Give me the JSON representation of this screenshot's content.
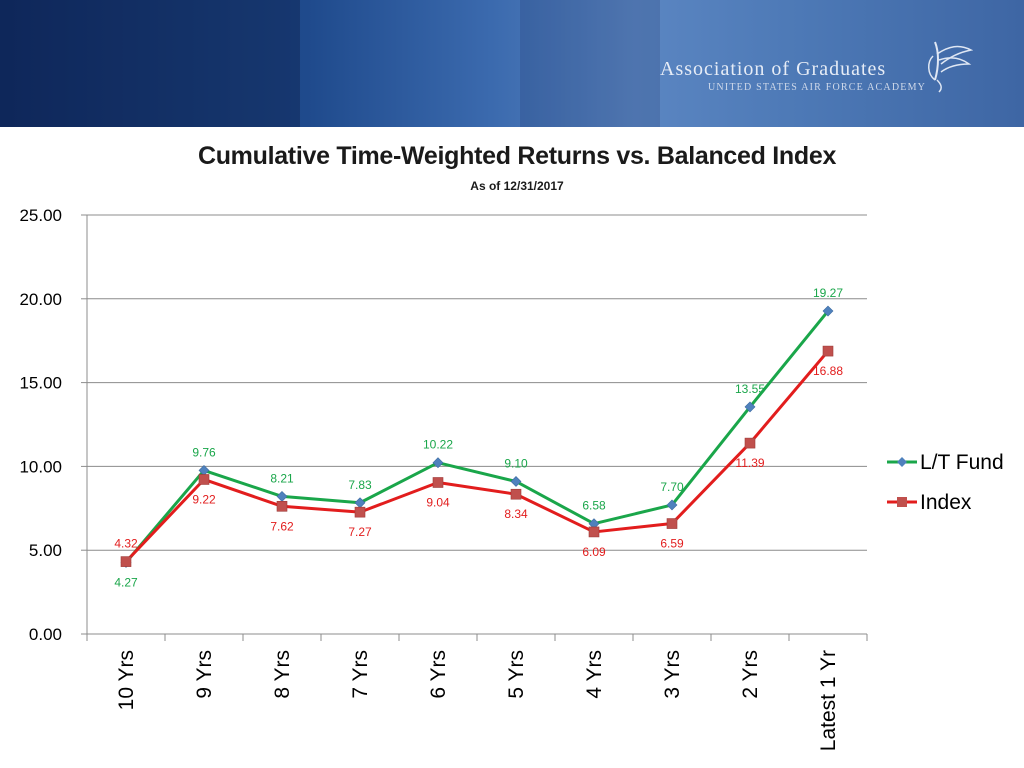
{
  "header": {
    "logo_line1": "Association of Graduates",
    "logo_line2": "United States Air Force Academy",
    "logo_icon": "eagle-wings-icon",
    "colors": {
      "banner_dark": "#12306a",
      "banner_light": "#5b86c2"
    }
  },
  "chart_data": {
    "type": "line",
    "title": "Cumulative Time-Weighted Returns vs. Balanced Index",
    "subtitle": "As of 12/31/2017",
    "categories": [
      "10 Yrs",
      "9 Yrs",
      "8 Yrs",
      "7 Yrs",
      "6 Yrs",
      "5 Yrs",
      "4 Yrs",
      "3 Yrs",
      "2 Yrs",
      "Latest 1 Yr"
    ],
    "series": [
      {
        "name": "L/T Fund",
        "values": [
          4.27,
          9.76,
          8.21,
          7.83,
          10.22,
          9.1,
          6.58,
          7.7,
          13.55,
          19.27
        ],
        "labels": [
          "4.27",
          "9.76",
          "8.21",
          "7.83",
          "10.22",
          "9.10",
          "6.58",
          "7.70",
          "13.55",
          "19.27"
        ],
        "color": "#1aa64a",
        "marker_color": "#4f81bd",
        "marker": "diamond"
      },
      {
        "name": "Index",
        "values": [
          4.32,
          9.22,
          7.62,
          7.27,
          9.04,
          8.34,
          6.09,
          6.59,
          11.39,
          16.88
        ],
        "labels": [
          "4.32",
          "9.22",
          "7.62",
          "7.27",
          "9.04",
          "8.34",
          "6.09",
          "6.59",
          "11.39",
          "16.88"
        ],
        "color": "#e21d1d",
        "marker_color": "#c0504d",
        "marker": "square"
      }
    ],
    "ylim": [
      0,
      25
    ],
    "yticks": [
      "0.00",
      "5.00",
      "10.00",
      "15.00",
      "20.00",
      "25.00"
    ],
    "grid": true,
    "legend": "right"
  }
}
